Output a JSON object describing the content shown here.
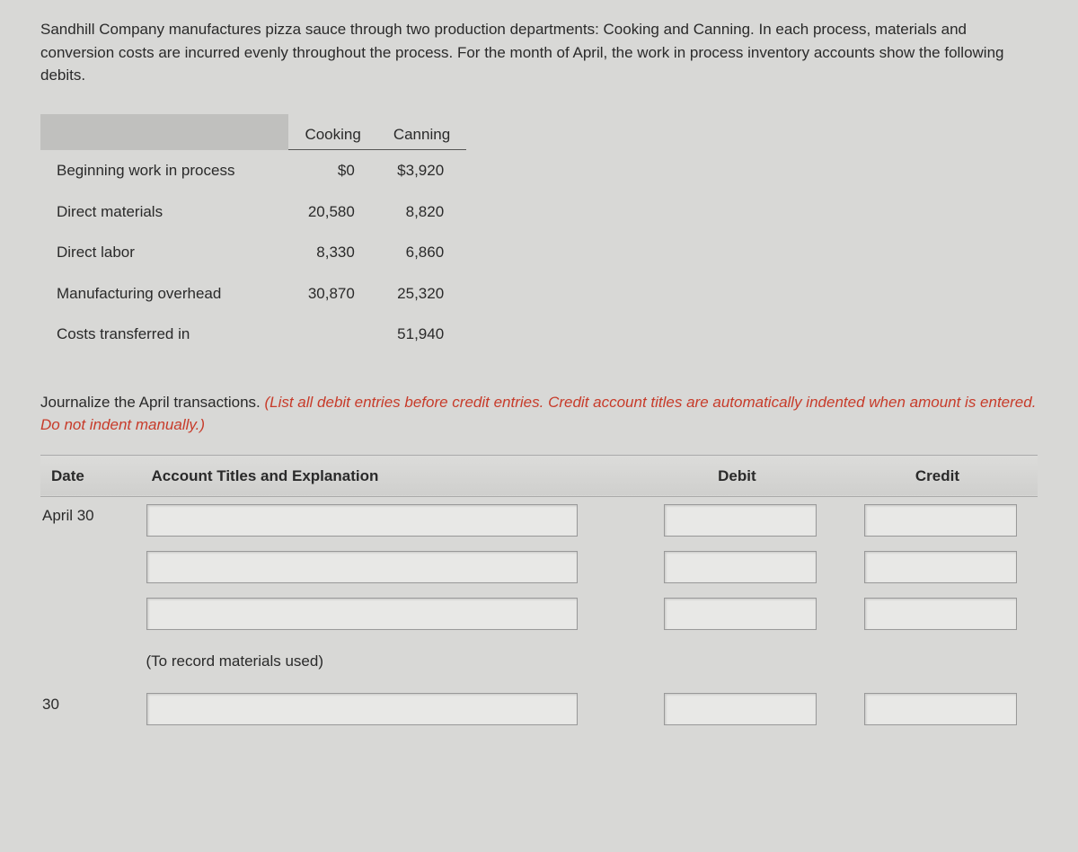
{
  "intro": "Sandhill Company manufactures pizza sauce through two production departments: Cooking and Canning. In each process, materials and conversion costs are incurred evenly throughout the process. For the month of April, the work in process inventory accounts show the following debits.",
  "table": {
    "col1": "Cooking",
    "col2": "Canning",
    "rows": [
      {
        "label": "Beginning work in process",
        "c1": "$0",
        "c2": "$3,920"
      },
      {
        "label": "Direct materials",
        "c1": "20,580",
        "c2": "8,820"
      },
      {
        "label": "Direct labor",
        "c1": "8,330",
        "c2": "6,860"
      },
      {
        "label": "Manufacturing overhead",
        "c1": "30,870",
        "c2": "25,320"
      },
      {
        "label": "Costs transferred in",
        "c1": "",
        "c2": "51,940"
      }
    ]
  },
  "journal_instr_black": "Journalize the April transactions. ",
  "journal_instr_red": "(List all debit entries before credit entries. Credit account titles are automatically indented when amount is entered. Do not indent manually.)",
  "headers": {
    "date": "Date",
    "acct": "Account Titles and Explanation",
    "debit": "Debit",
    "credit": "Credit"
  },
  "date1": "April 30",
  "explain1": "(To record materials used)",
  "date2": "30"
}
